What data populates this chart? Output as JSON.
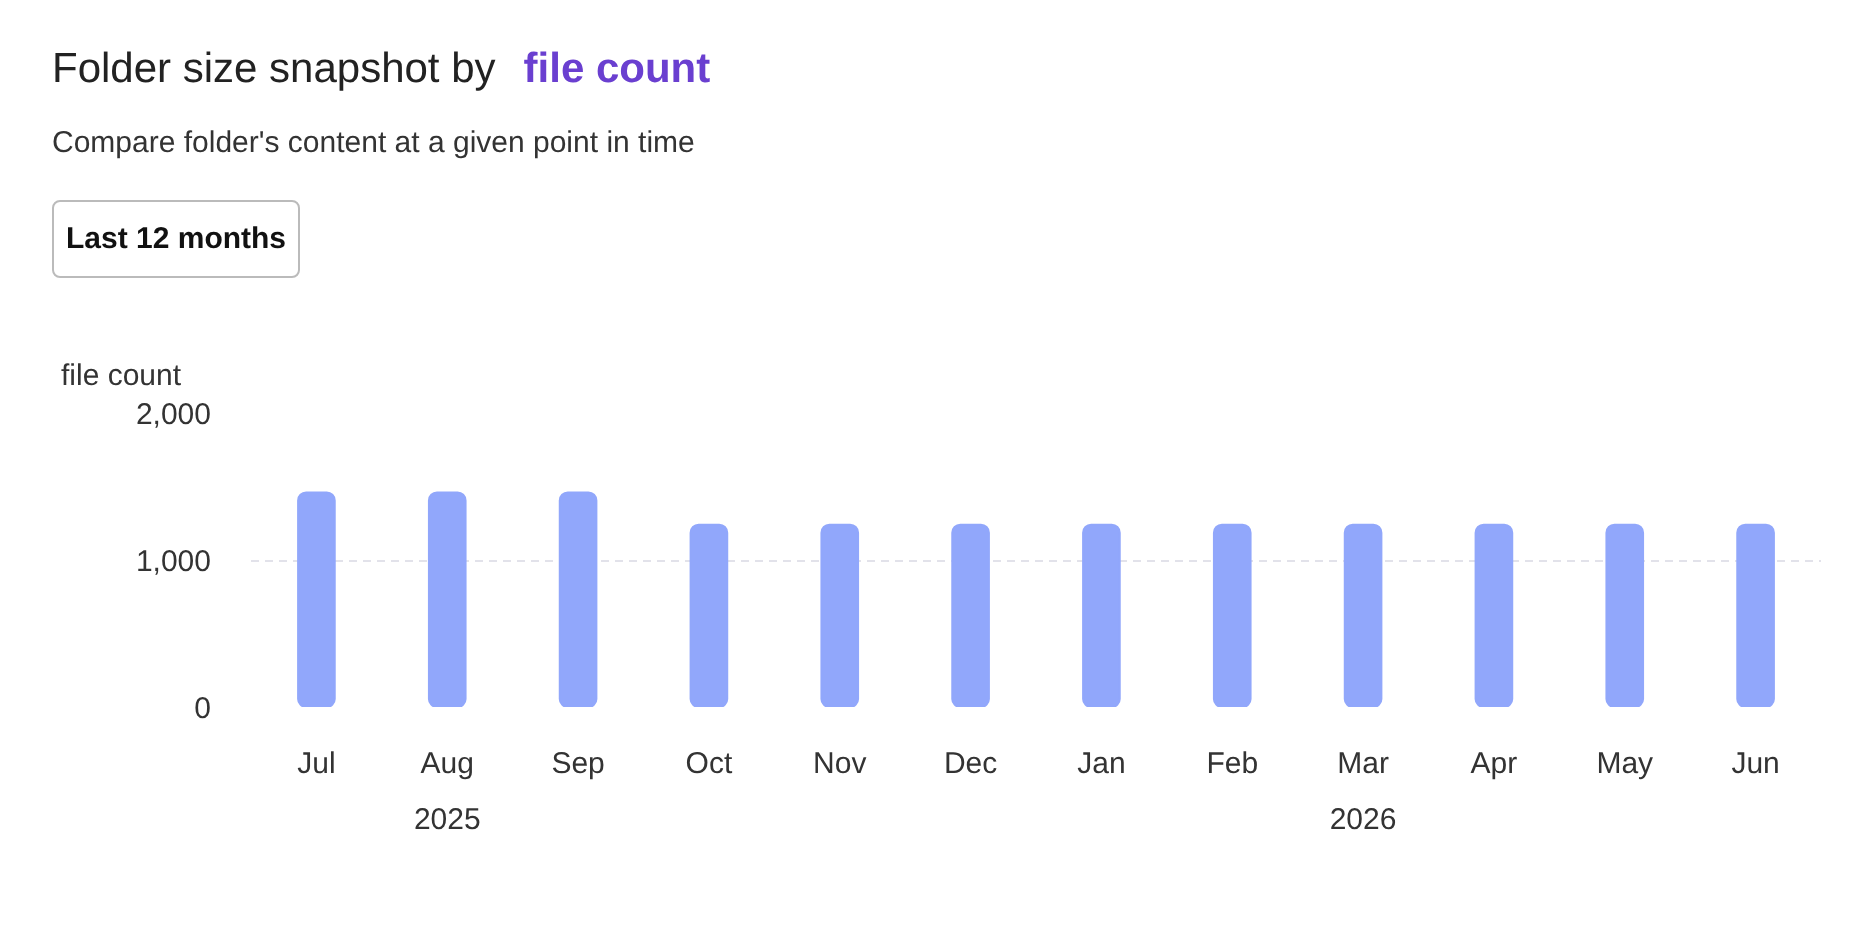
{
  "chart_data": {
    "type": "bar",
    "title": "Folder size snapshot by",
    "subtitle": "Compare folder's content at a given point in time",
    "ylabel": "file count",
    "annotations": [
      "file count",
      "Last 12 months",
      "2025",
      "2026"
    ],
    "categories": [
      "Jul",
      "Aug",
      "Sep",
      "Oct",
      "Nov",
      "Dec",
      "Jan",
      "Feb",
      "Mar",
      "Apr",
      "May",
      "Jun"
    ],
    "values": [
      1460,
      1460,
      1460,
      1240,
      1240,
      1240,
      1240,
      1240,
      1240,
      1240,
      1240,
      1240
    ],
    "color": "#91a7fb",
    "ylim": [
      0,
      2000
    ],
    "yticks": [
      0,
      {
        "value": 1000,
        "label": "1,000"
      },
      {
        "value": 2000,
        "label": "2,000"
      }
    ],
    "grid": "y"
  }
}
